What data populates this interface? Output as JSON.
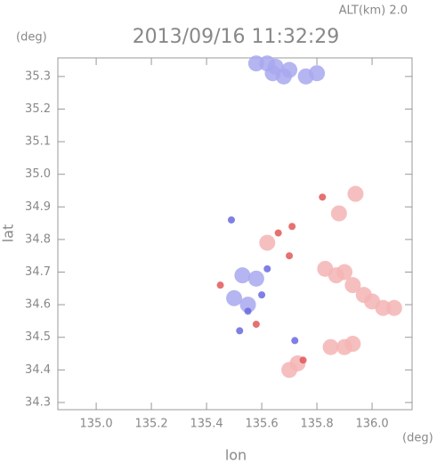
{
  "chart_data": {
    "type": "scatter",
    "title": "2013/09/16 11:32:29",
    "annotation": "ALT(km)  2.0",
    "x_label": "lon",
    "y_label": "lat",
    "x_unit": "(deg)",
    "y_unit": "(deg)",
    "xlim": [
      134.861,
      136.145
    ],
    "ylim": [
      34.278,
      35.357
    ],
    "xticks": [
      {
        "value": 135,
        "label": "135.0"
      },
      135.2,
      135.4,
      135.6,
      135.8,
      {
        "value": 136,
        "label": "136.0"
      }
    ],
    "yticks": [
      34.3,
      34.4,
      34.5,
      34.6,
      34.7,
      34.8,
      34.9,
      {
        "value": 35,
        "label": "35.0"
      },
      35.1,
      35.2,
      35.3
    ],
    "series": [
      {
        "color": "#a8a8f0",
        "x": [
          135.58,
          135.62,
          135.65,
          135.64,
          135.68,
          135.7,
          135.76,
          135.8,
          135.53,
          135.58,
          135.5,
          135.55
        ],
        "values": [
          35.34,
          35.34,
          35.33,
          35.31,
          35.3,
          35.32,
          35.3,
          35.31,
          34.69,
          34.68,
          34.62,
          34.6
        ]
      },
      {
        "color": "#6868e0",
        "x": [
          135.49,
          135.55,
          135.6,
          135.52,
          135.72,
          135.62
        ],
        "values": [
          34.86,
          34.58,
          34.63,
          34.52,
          34.49,
          34.71
        ]
      },
      {
        "color": "#f4b4b4",
        "x": [
          135.83,
          135.87,
          135.9,
          135.93,
          135.97,
          136.0,
          136.04,
          136.08,
          135.85,
          135.9,
          135.93,
          135.88,
          135.94,
          135.73,
          135.7,
          135.62
        ],
        "values": [
          34.71,
          34.69,
          34.7,
          34.66,
          34.63,
          34.61,
          34.59,
          34.59,
          34.47,
          34.47,
          34.48,
          34.88,
          34.94,
          34.42,
          34.4,
          34.79
        ]
      },
      {
        "color": "#e05858",
        "x": [
          135.75,
          135.71,
          135.82,
          135.66,
          135.45,
          135.58,
          135.7
        ],
        "values": [
          34.43,
          34.84,
          34.93,
          34.82,
          34.66,
          34.54,
          34.75
        ]
      }
    ]
  }
}
